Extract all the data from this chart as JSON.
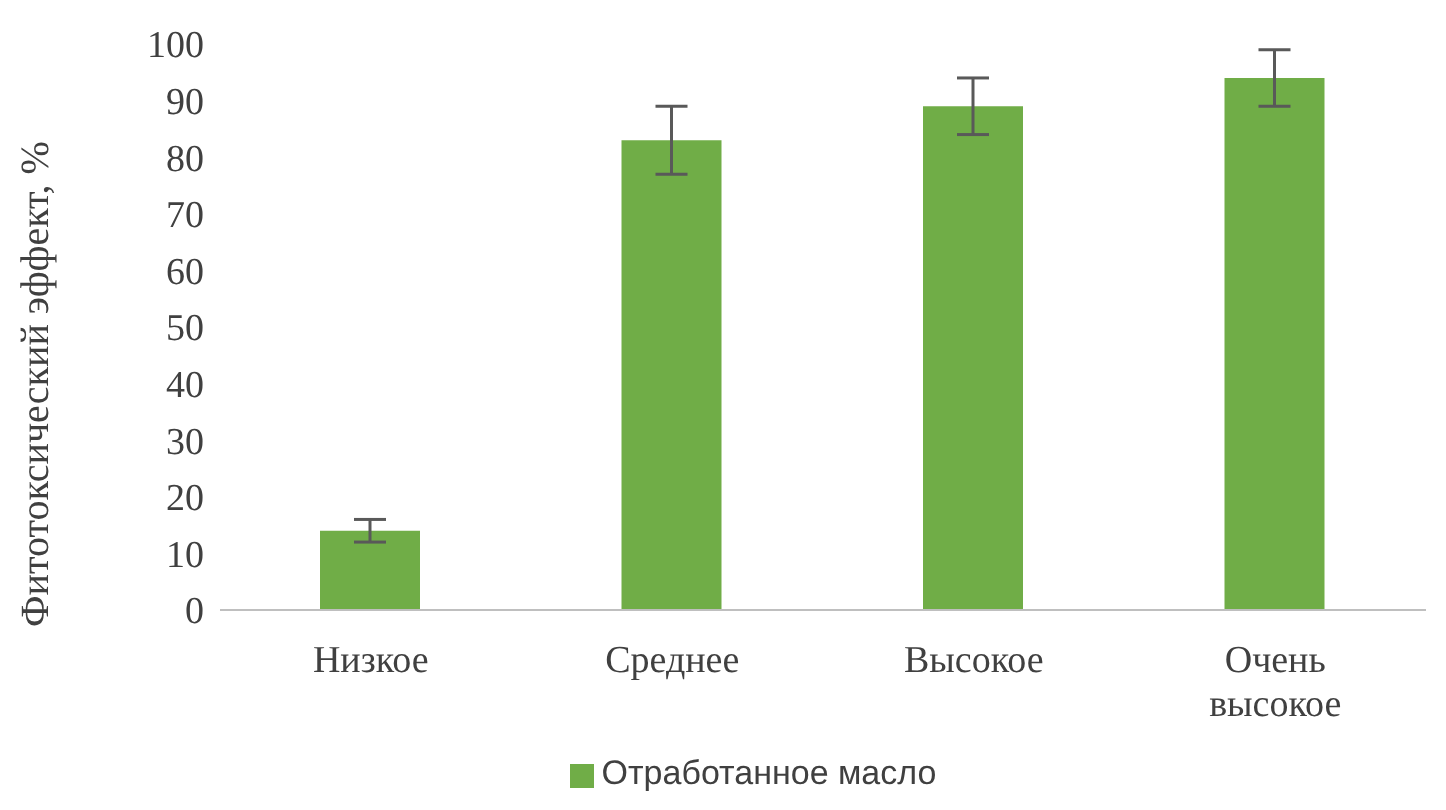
{
  "chart_data": {
    "type": "bar",
    "ylabel": "Фитотоксический эффект, %",
    "categories": [
      "Низкое",
      "Среднее",
      "Высокое",
      "Очень высокое"
    ],
    "series": [
      {
        "name": "Отработанное масло",
        "color": "#70ad47",
        "values": [
          14,
          83,
          89,
          94
        ],
        "errors": [
          2,
          6,
          5,
          5
        ]
      }
    ],
    "ylim": [
      0,
      100
    ],
    "yticks": [
      0,
      10,
      20,
      30,
      40,
      50,
      60,
      70,
      80,
      90,
      100
    ],
    "grid": false,
    "legend": "bottom"
  }
}
